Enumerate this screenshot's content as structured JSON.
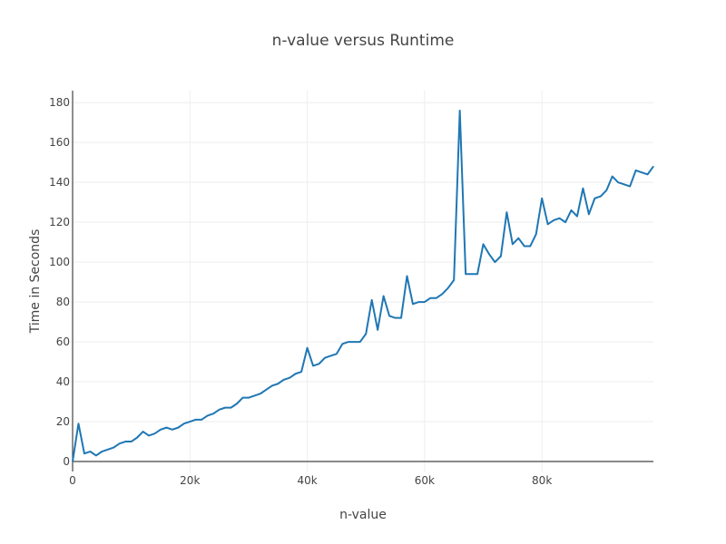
{
  "chart_data": {
    "type": "line",
    "title": "n-value versus Runtime",
    "xlabel": "n-value",
    "ylabel": "Time in Seconds",
    "xlim": [
      0,
      99000
    ],
    "ylim": [
      -5,
      186
    ],
    "x_ticks": [
      {
        "value": 0,
        "label": "0"
      },
      {
        "value": 20000,
        "label": "20k"
      },
      {
        "value": 40000,
        "label": "40k"
      },
      {
        "value": 60000,
        "label": "60k"
      },
      {
        "value": 80000,
        "label": "80k"
      }
    ],
    "y_ticks": [
      {
        "value": 0,
        "label": "0"
      },
      {
        "value": 20,
        "label": "20"
      },
      {
        "value": 40,
        "label": "40"
      },
      {
        "value": 60,
        "label": "60"
      },
      {
        "value": 80,
        "label": "80"
      },
      {
        "value": 100,
        "label": "100"
      },
      {
        "value": 120,
        "label": "120"
      },
      {
        "value": 140,
        "label": "140"
      },
      {
        "value": 160,
        "label": "160"
      },
      {
        "value": 180,
        "label": "180"
      }
    ],
    "grid": true,
    "series": [
      {
        "color": "#1f77b4",
        "x": [
          0,
          1000,
          2000,
          3000,
          4000,
          5000,
          6000,
          7000,
          8000,
          9000,
          10000,
          11000,
          12000,
          13000,
          14000,
          15000,
          16000,
          17000,
          18000,
          19000,
          20000,
          21000,
          22000,
          23000,
          24000,
          25000,
          26000,
          27000,
          28000,
          29000,
          30000,
          31000,
          32000,
          33000,
          34000,
          35000,
          36000,
          37000,
          38000,
          39000,
          40000,
          41000,
          42000,
          43000,
          44000,
          45000,
          46000,
          47000,
          48000,
          49000,
          50000,
          51000,
          52000,
          53000,
          54000,
          55000,
          56000,
          57000,
          58000,
          59000,
          60000,
          61000,
          62000,
          63000,
          64000,
          65000,
          66000,
          67000,
          68000,
          69000,
          70000,
          71000,
          72000,
          73000,
          74000,
          75000,
          76000,
          77000,
          78000,
          79000,
          80000,
          81000,
          82000,
          83000,
          84000,
          85000,
          86000,
          87000,
          88000,
          89000,
          90000,
          91000,
          92000,
          93000,
          94000,
          95000,
          96000,
          97000,
          98000,
          99000
        ],
        "y": [
          0,
          19,
          4,
          5,
          3,
          5,
          6,
          7,
          9,
          10,
          10,
          12,
          15,
          13,
          14,
          16,
          17,
          16,
          17,
          19,
          20,
          21,
          21,
          23,
          24,
          26,
          27,
          27,
          29,
          32,
          32,
          33,
          34,
          36,
          38,
          39,
          41,
          42,
          44,
          45,
          57,
          48,
          49,
          52,
          53,
          54,
          59,
          60,
          60,
          60,
          64,
          81,
          66,
          83,
          73,
          72,
          72,
          93,
          79,
          80,
          80,
          82,
          82,
          84,
          87,
          91,
          176,
          94,
          94,
          94,
          109,
          104,
          100,
          103,
          125,
          109,
          112,
          108,
          108,
          114,
          132,
          119,
          121,
          122,
          120,
          126,
          123,
          137,
          124,
          132,
          133,
          136,
          143,
          140,
          139,
          138,
          146,
          145,
          144,
          148
        ]
      }
    ]
  }
}
